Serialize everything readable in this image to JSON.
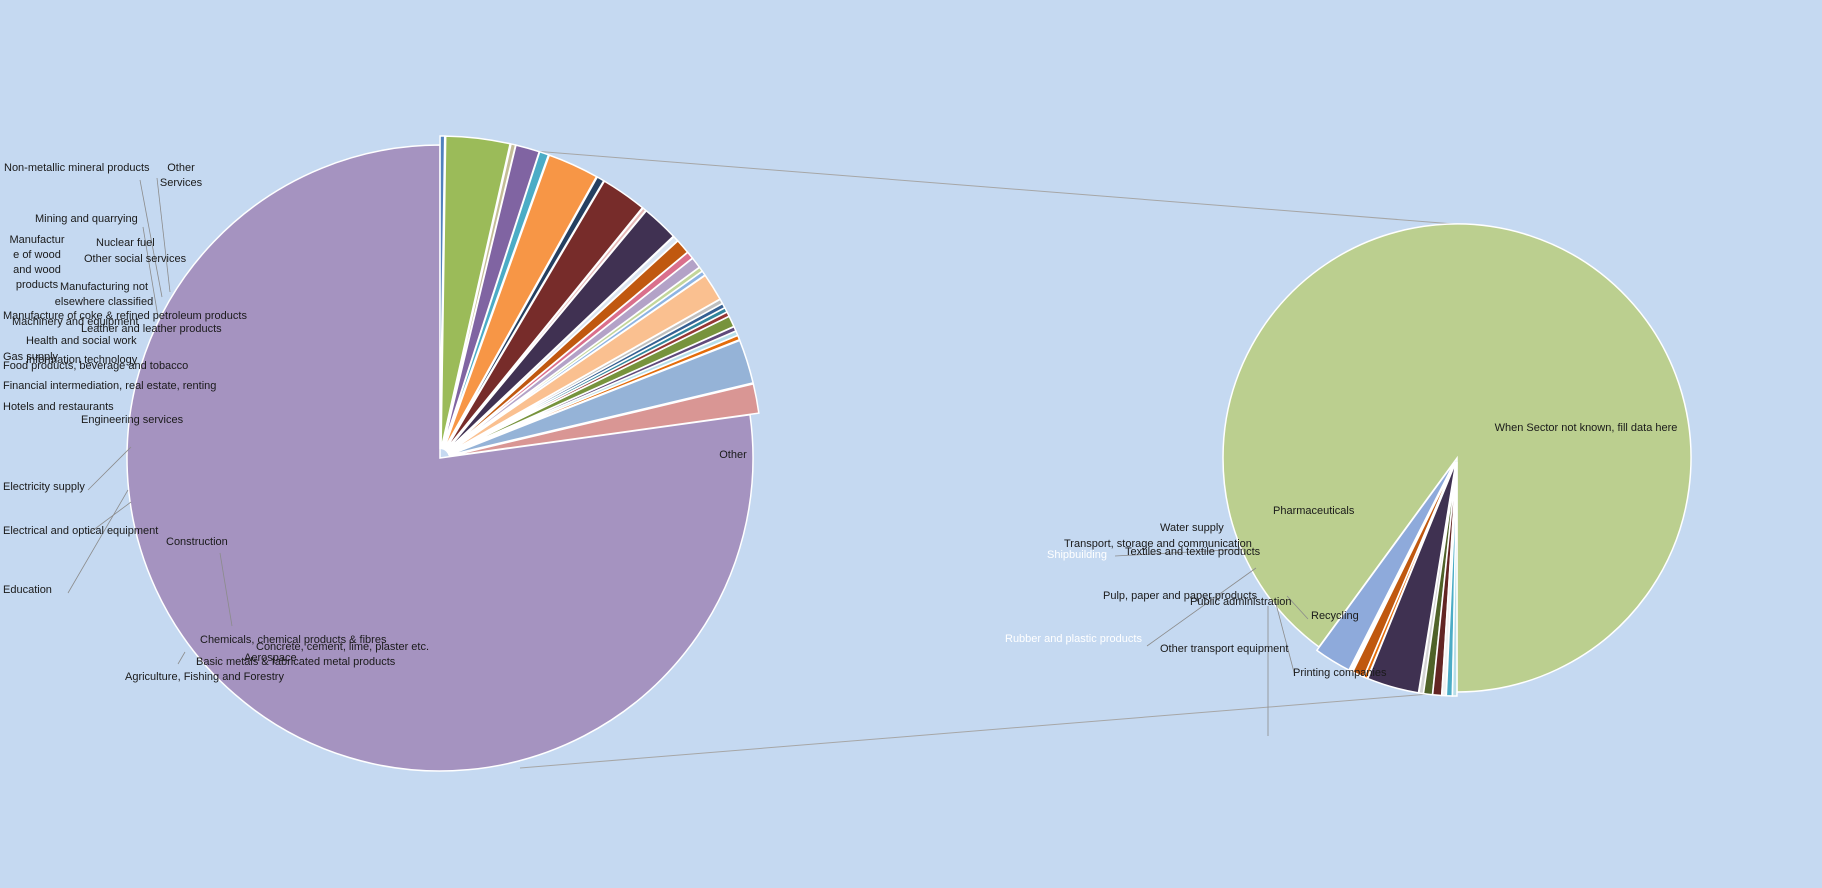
{
  "chart_data": {
    "type": "pie",
    "subtype": "pie-of-pie",
    "background": "#c5d9f1",
    "title": "",
    "main_pie": {
      "start_angle_deg": 90,
      "direction": "counterclockwise",
      "slices": [
        {
          "label": "Other",
          "value": 81.8,
          "color": "#a593c0",
          "explode": 0
        },
        {
          "label": "Other Services",
          "value": 1.6,
          "color": "#d99694",
          "explode": 1
        },
        {
          "label": "Other social services",
          "value": 2.4,
          "color": "#95b3d7",
          "explode": 1
        },
        {
          "label": "Nuclear fuel",
          "value": 0.25,
          "color": "#e46c0a",
          "explode": 1
        },
        {
          "label": "Non-metallic mineral products",
          "value": 0.25,
          "color": "#b7dee8",
          "explode": 1
        },
        {
          "label": "Mining and quarrying",
          "value": 0.25,
          "color": "#604a7b",
          "explode": 1
        },
        {
          "label": "Manufacture of wood and wood products",
          "value": 0.6,
          "color": "#77933c",
          "explode": 1
        },
        {
          "label": "Manufacturing not elsewhere classified",
          "value": 0.25,
          "color": "#953735",
          "explode": 1
        },
        {
          "label": "Manufacture of coke & refined petroleum products",
          "value": 0.25,
          "color": "#31859c",
          "explode": 1
        },
        {
          "label": "Machinery and equipment",
          "value": 0.25,
          "color": "#366092",
          "explode": 1
        },
        {
          "label": "Leather and leather products",
          "value": 0.25,
          "color": "#bfbfbf",
          "explode": 1
        },
        {
          "label": "Health and social work",
          "value": 1.5,
          "color": "#fac090",
          "explode": 1
        },
        {
          "label": "Information technology",
          "value": 0.25,
          "color": "#8eb4e3",
          "explode": 1
        },
        {
          "label": "Gas supply",
          "value": 0.25,
          "color": "#c3d69b",
          "explode": 1
        },
        {
          "label": "Food products, beverage and tobacco",
          "value": 0.6,
          "color": "#b3a2c7",
          "explode": 1
        },
        {
          "label": "Financial intermediation, real estate, renting",
          "value": 0.4,
          "color": "#da6f8c",
          "explode": 1
        },
        {
          "label": "Hotels and restaurants",
          "value": 0.8,
          "color": "#c0580f",
          "explode": 1
        },
        {
          "label": "Engineering services",
          "value": 0.3,
          "color": "#dbe5f1",
          "explode": 1
        },
        {
          "label": "Electricity supply",
          "value": 2.0,
          "color": "#403152",
          "explode": 1
        },
        {
          "label": "",
          "value": 0.2,
          "color": "#e6b9b8",
          "explode": 1
        },
        {
          "label": "Electrical and optical equipment",
          "value": 2.5,
          "color": "#772c2a",
          "explode": 1
        },
        {
          "label": "Education",
          "value": 0.4,
          "color": "#254061",
          "explode": 1
        },
        {
          "label": "Construction",
          "value": 2.8,
          "color": "#f79646",
          "explode": 1
        },
        {
          "label": "Concrete, cement, lime, plaster etc.",
          "value": 0.5,
          "color": "#4bacc6",
          "explode": 1
        },
        {
          "label": "Chemicals, chemical products & fibres",
          "value": 1.3,
          "color": "#8064a2",
          "explode": 1
        },
        {
          "label": "Basic metals & fabricated metal products",
          "value": 0.25,
          "color": "#c4bd97",
          "explode": 1
        },
        {
          "label": "Agriculture, Fishing and Forestry",
          "value": 3.5,
          "color": "#9bbb59",
          "explode": 1
        },
        {
          "label": "Aerospace",
          "value": 0.25,
          "color": "#4f81bd",
          "explode": 1
        }
      ]
    },
    "secondary_pie": {
      "start_angle_deg": 270,
      "direction": "counterclockwise",
      "slices": [
        {
          "label": "When Sector not known, fill data here",
          "value": 87.8,
          "color": "#bbcf8f",
          "explode": 0
        },
        {
          "label": "Water supply",
          "value": 2.5,
          "color": "#8eaadb",
          "explode": 1
        },
        {
          "label": "Pharmaceuticals",
          "value": 0.25,
          "color": "#ffffff",
          "explode": 1
        },
        {
          "label": "Transport, storage and communication",
          "value": 0.8,
          "color": "#c0580f",
          "explode": 1
        },
        {
          "label": "Shipbuilding",
          "value": 0.25,
          "color": "#e46c0a",
          "explode": 1
        },
        {
          "label": "Textiles and textile products",
          "value": 3.5,
          "color": "#3f3151",
          "explode": 1
        },
        {
          "label": "Pulp, paper and paper products",
          "value": 0.3,
          "color": "#d4d4d4",
          "explode": 1
        },
        {
          "label": "Rubber and plastic products",
          "value": 0.6,
          "color": "#4f6228",
          "explode": 1
        },
        {
          "label": "Public administration",
          "value": 0.6,
          "color": "#632523",
          "explode": 1
        },
        {
          "label": "Other transport equipment",
          "value": 0.3,
          "color": "#f2f2f2",
          "explode": 1
        },
        {
          "label": "Printing companies",
          "value": 0.4,
          "color": "#4bacc6",
          "explode": 1
        },
        {
          "label": "Recycling",
          "value": 0.3,
          "color": "#b7dee8",
          "explode": 1
        }
      ]
    },
    "labels_main": [
      {
        "slice": "Other",
        "lines": [
          "Other"
        ],
        "pos": "inside"
      },
      {
        "slice": "Other Services",
        "lines": [
          "Other",
          "Services"
        ]
      },
      {
        "slice": "Non-metallic mineral products",
        "lines": [
          "Non-metallic mineral products"
        ]
      },
      {
        "slice": "Mining and quarrying",
        "lines": [
          "Mining and quarrying"
        ]
      },
      {
        "slice": "Nuclear fuel",
        "lines": [
          "Nuclear fuel"
        ]
      },
      {
        "slice": "Other social services",
        "lines": [
          "Other social services"
        ]
      },
      {
        "slice": "Manufacture of wood and wood products",
        "lines": [
          "Manufactur",
          "e of wood",
          "and wood",
          "products"
        ]
      },
      {
        "slice": "Manufacturing not elsewhere classified",
        "lines": [
          "Manufacturing not",
          "elsewhere classified"
        ]
      },
      {
        "slice": "Manufacture of coke & refined petroleum products",
        "lines": [
          "Manufacture of coke & refined petroleum products"
        ]
      },
      {
        "slice": "Machinery and equipment",
        "lines": [
          "Machinery and equipment"
        ]
      },
      {
        "slice": "Leather and leather products",
        "lines": [
          "Leather and leather products"
        ]
      },
      {
        "slice": "Health and social work",
        "lines": [
          "Health and social work"
        ]
      },
      {
        "slice": "Gas supply",
        "lines": [
          "Gas supply"
        ]
      },
      {
        "slice": "Information technology",
        "lines": [
          "Information technology"
        ]
      },
      {
        "slice": "Food products, beverage and tobacco",
        "lines": [
          "Food products, beverage and tobacco"
        ]
      },
      {
        "slice": "Financial intermediation, real estate, renting",
        "lines": [
          "Financial intermediation, real estate, renting"
        ]
      },
      {
        "slice": "Hotels and restaurants",
        "lines": [
          "Hotels and restaurants"
        ]
      },
      {
        "slice": "Engineering services",
        "lines": [
          "Engineering services"
        ]
      },
      {
        "slice": "Electricity supply",
        "lines": [
          "Electricity supply"
        ]
      },
      {
        "slice": "Electrical and optical equipment",
        "lines": [
          "Electrical and optical equipment"
        ]
      },
      {
        "slice": "Education",
        "lines": [
          "Education"
        ]
      },
      {
        "slice": "Construction",
        "lines": [
          "Construction"
        ]
      },
      {
        "slice": "Chemicals, chemical products & fibres",
        "lines": [
          "Chemicals, chemical products & fibres"
        ]
      },
      {
        "slice": "Concrete, cement, lime, plaster etc.",
        "lines": [
          "Concrete, cement, lime, plaster etc."
        ]
      },
      {
        "slice": "Aerospace",
        "lines": [
          "Aerospace"
        ]
      },
      {
        "slice": "Basic metals & fabricated metal products",
        "lines": [
          "Basic metals & fabricated metal products"
        ]
      },
      {
        "slice": "Agriculture, Fishing and Forestry",
        "lines": [
          "Agriculture, Fishing and Forestry"
        ]
      }
    ],
    "labels_secondary": [
      {
        "slice": "When Sector not known, fill data here",
        "lines": [
          "When Sector not known, fill data here"
        ],
        "pos": "inside"
      },
      {
        "slice": "Water supply",
        "lines": [
          "Water supply"
        ]
      },
      {
        "slice": "Pharmaceuticals",
        "lines": [
          "Pharmaceuticals"
        ]
      },
      {
        "slice": "Transport, storage and communication",
        "lines": [
          "Transport, storage and communication"
        ]
      },
      {
        "slice": "Shipbuilding",
        "lines": [
          "Shipbuilding"
        ],
        "light": true
      },
      {
        "slice": "Textiles and textile products",
        "lines": [
          "Textiles and textile products"
        ]
      },
      {
        "slice": "Pulp, paper and paper products",
        "lines": [
          "Pulp, paper and paper products"
        ]
      },
      {
        "slice": "Public administration",
        "lines": [
          "Public administration"
        ]
      },
      {
        "slice": "Rubber and plastic products",
        "lines": [
          "Rubber and plastic products"
        ],
        "light": true
      },
      {
        "slice": "Recycling",
        "lines": [
          "Recycling"
        ]
      },
      {
        "slice": "Other transport equipment",
        "lines": [
          "Other transport equipment"
        ]
      },
      {
        "slice": "Printing companies",
        "lines": [
          "Printing companies"
        ]
      }
    ]
  }
}
